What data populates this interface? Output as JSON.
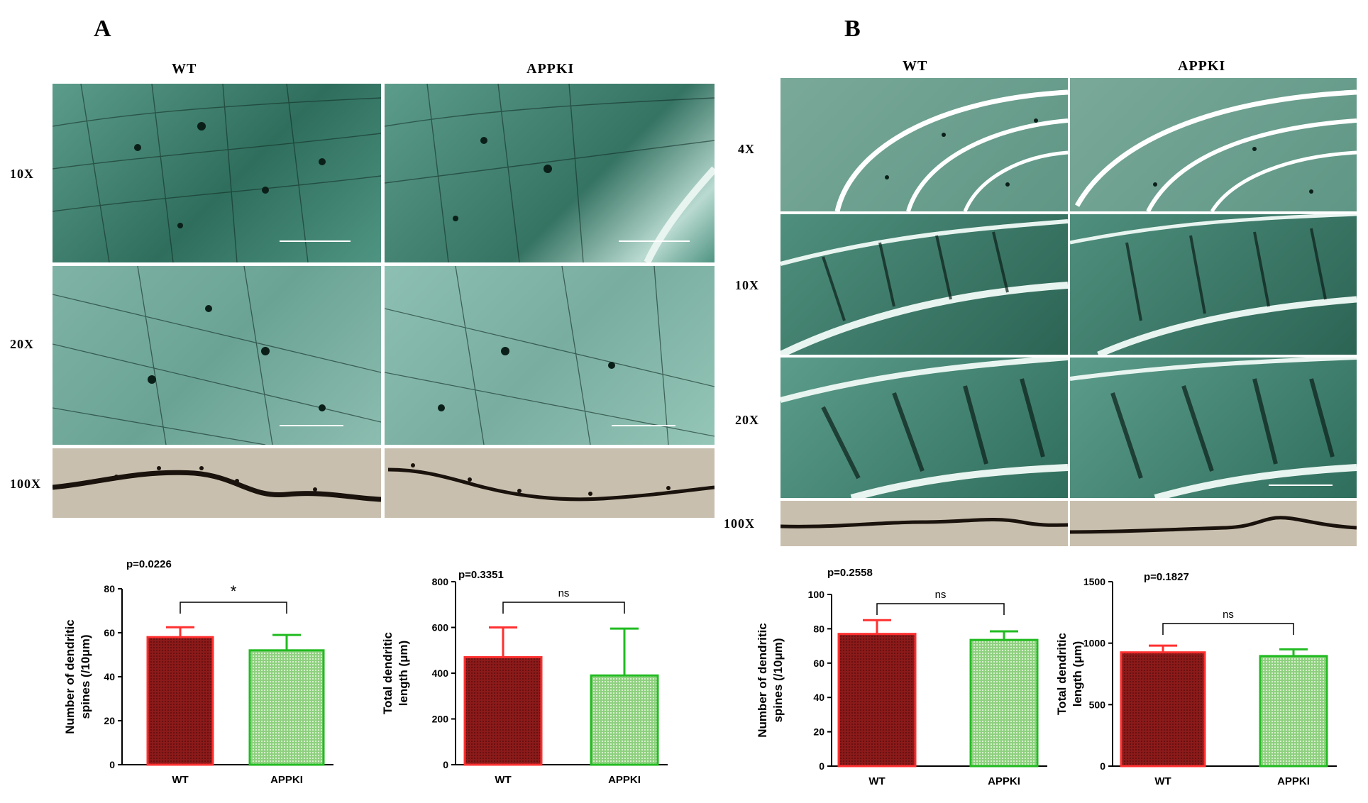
{
  "panels": [
    {
      "letter": "A",
      "columns": [
        "WT",
        "APPKI"
      ],
      "rows": [
        "10X",
        "20X",
        "100X"
      ]
    },
    {
      "letter": "B",
      "columns": [
        "WT",
        "APPKI"
      ],
      "rows": [
        "4X",
        "10X",
        "20X",
        "100X"
      ]
    }
  ],
  "colors": {
    "wt_fill": "#8b1a1a",
    "wt_stroke": "#ff3030",
    "appki_fill": "#8fd080",
    "appki_stroke": "#22bb22",
    "tissue": "#3f8a78",
    "dendrite_bg": "#c9bfae"
  },
  "chart_data": [
    {
      "type": "bar",
      "panel": "A",
      "categories": [
        "WT",
        "APPKI"
      ],
      "values": [
        58,
        52
      ],
      "errors": [
        4.5,
        7
      ],
      "ylabel": "Number of dendritic spines (/10μm)",
      "ylim": [
        0,
        80
      ],
      "yticks": [
        0,
        20,
        40,
        60,
        80
      ],
      "pvalue": "p=0.0226",
      "significance": "*"
    },
    {
      "type": "bar",
      "panel": "A",
      "categories": [
        "WT",
        "APPKI"
      ],
      "values": [
        470,
        390
      ],
      "errors": [
        130,
        205
      ],
      "ylabel": "Total dendritic length (μm)",
      "ylim": [
        0,
        800
      ],
      "yticks": [
        0,
        200,
        400,
        600,
        800
      ],
      "pvalue": "p=0.3351",
      "significance": "ns"
    },
    {
      "type": "bar",
      "panel": "B",
      "categories": [
        "WT",
        "APPKI"
      ],
      "values": [
        77,
        73.5
      ],
      "errors": [
        8,
        5
      ],
      "ylabel": "Number of dendritic spines (/10μm)",
      "ylim": [
        0,
        100
      ],
      "yticks": [
        0,
        20,
        40,
        60,
        80,
        100
      ],
      "pvalue": "p=0.2558",
      "significance": "ns"
    },
    {
      "type": "bar",
      "panel": "B",
      "categories": [
        "WT",
        "APPKI"
      ],
      "values": [
        925,
        895
      ],
      "errors": [
        55,
        55
      ],
      "ylabel": "Total dendritic length (μm)",
      "ylim": [
        0,
        1500
      ],
      "yticks": [
        0,
        500,
        1000,
        1500
      ],
      "pvalue": "p=0.1827",
      "significance": "ns"
    }
  ]
}
